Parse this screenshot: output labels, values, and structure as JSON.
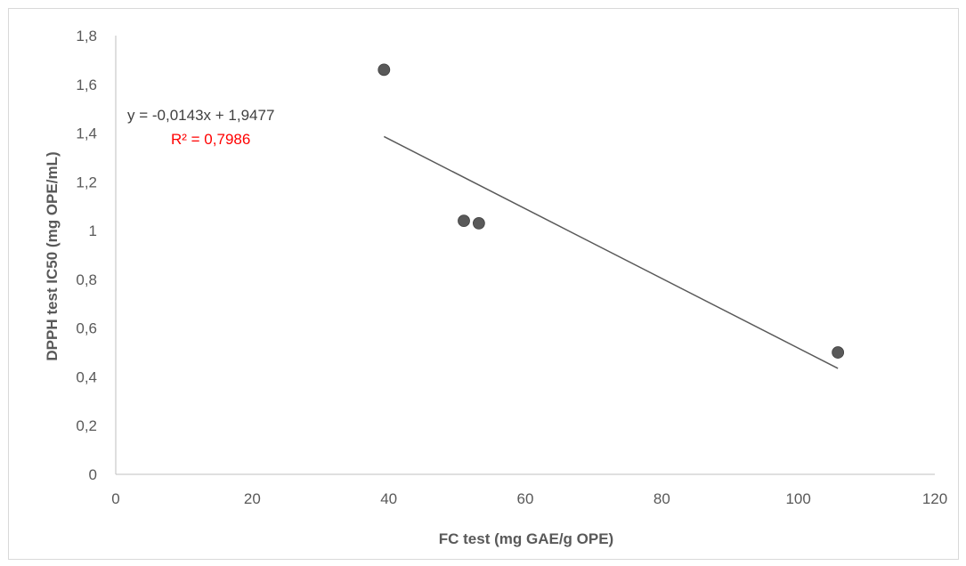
{
  "chart_data": {
    "type": "scatter",
    "title": "",
    "xlabel": "FC test (mg GAE/g OPE)",
    "ylabel": "DPPH test IC50 (mg OPE/mL)",
    "xlim": [
      0,
      120
    ],
    "ylim": [
      0,
      1.8
    ],
    "x_ticks": [
      0,
      20,
      40,
      60,
      80,
      100,
      120
    ],
    "y_ticks": [
      0,
      0.2,
      0.4,
      0.6,
      0.8,
      1,
      1.2,
      1.4,
      1.6,
      1.8
    ],
    "x_tick_labels": [
      "0",
      "20",
      "40",
      "60",
      "80",
      "100",
      "120"
    ],
    "y_tick_labels": [
      "0",
      "0,2",
      "0,4",
      "0,6",
      "0,8",
      "1",
      "1,2",
      "1,4",
      "1,6",
      "1,8"
    ],
    "grid": false,
    "series": [
      {
        "points": [
          {
            "x": 39.3,
            "y": 1.66
          },
          {
            "x": 51.0,
            "y": 1.04
          },
          {
            "x": 53.2,
            "y": 1.03
          },
          {
            "x": 105.8,
            "y": 0.5
          }
        ],
        "marker_color": "#595959"
      }
    ],
    "trendline": {
      "slope": -0.0143,
      "intercept": 1.9477,
      "x_range": [
        39.3,
        105.8
      ],
      "equation": "y = -0,0143x + 1,9477",
      "r_squared": "R² = 0,7986",
      "line_color": "#595959",
      "r_squared_color": "#ff0000"
    },
    "colors": {
      "axis": "#bfbfbf",
      "tick_text": "#595959",
      "axis_title": "#595959",
      "equation_text": "#404040"
    }
  }
}
